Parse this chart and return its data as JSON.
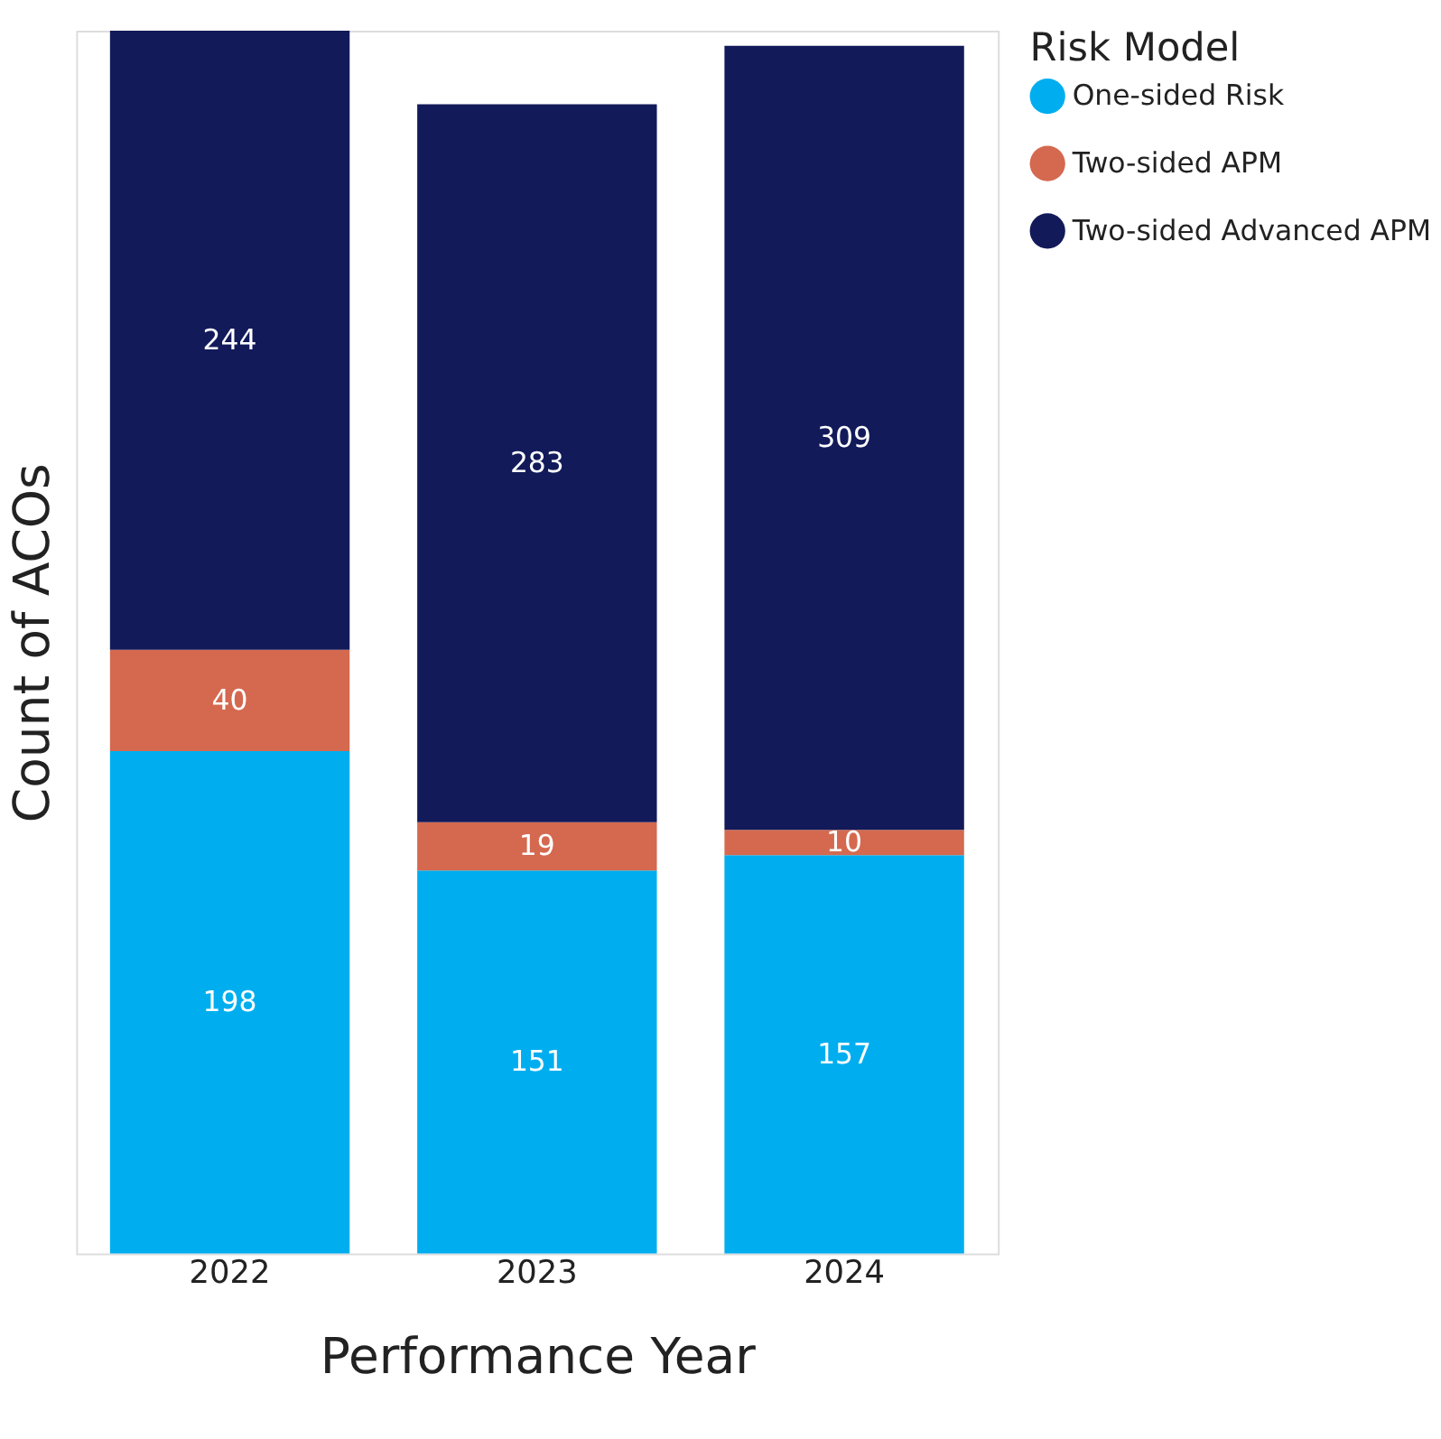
{
  "chart_data": {
    "type": "bar",
    "stacked": true,
    "xlabel": "Performance Year",
    "ylabel": "Count of ACOs",
    "legend_title": "Risk Model",
    "legend": "top right",
    "data_labels": true,
    "tick_labels": "x",
    "grid": false,
    "categories": [
      "2022",
      "2023",
      "2024"
    ],
    "series": [
      {
        "name": "One-sided Risk",
        "color": "#00aeef",
        "values": [
          198,
          151,
          157
        ]
      },
      {
        "name": "Two-sided APM",
        "color": "#d4694f",
        "values": [
          40,
          19,
          10
        ]
      },
      {
        "name": "Two-sided Advanced APM",
        "color": "#121a5a",
        "values": [
          244,
          283,
          309
        ]
      }
    ]
  }
}
